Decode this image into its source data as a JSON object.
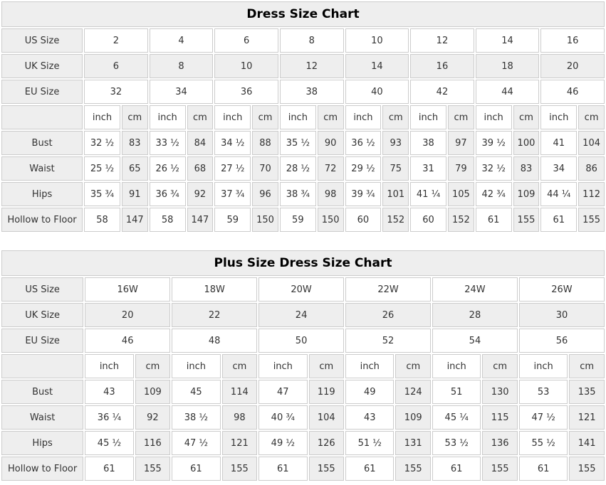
{
  "colors": {
    "shaded_cell": "#eeeeee",
    "plain_cell": "#ffffff",
    "border": "#cccccc",
    "cell_text": "#333333",
    "title_text": "#000000"
  },
  "chart_data": [
    {
      "type": "table",
      "title": "Dress Size Chart",
      "unit_labels": [
        "inch",
        "cm"
      ],
      "size_rows": [
        {
          "label": "US Size",
          "shaded": false,
          "values": [
            "2",
            "4",
            "6",
            "8",
            "10",
            "12",
            "14",
            "16"
          ]
        },
        {
          "label": "UK Size",
          "shaded": true,
          "values": [
            "6",
            "8",
            "10",
            "12",
            "14",
            "16",
            "18",
            "20"
          ]
        },
        {
          "label": "EU Size",
          "shaded": false,
          "values": [
            "32",
            "34",
            "36",
            "38",
            "40",
            "42",
            "44",
            "46"
          ]
        }
      ],
      "measure_rows": [
        {
          "label": "Bust",
          "values": [
            [
              "32 ½",
              "83"
            ],
            [
              "33 ½",
              "84"
            ],
            [
              "34 ½",
              "88"
            ],
            [
              "35 ½",
              "90"
            ],
            [
              "36 ½",
              "93"
            ],
            [
              "38",
              "97"
            ],
            [
              "39 ½",
              "100"
            ],
            [
              "41",
              "104"
            ]
          ]
        },
        {
          "label": "Waist",
          "values": [
            [
              "25 ½",
              "65"
            ],
            [
              "26 ½",
              "68"
            ],
            [
              "27 ½",
              "70"
            ],
            [
              "28 ½",
              "72"
            ],
            [
              "29 ½",
              "75"
            ],
            [
              "31",
              "79"
            ],
            [
              "32 ½",
              "83"
            ],
            [
              "34",
              "86"
            ]
          ]
        },
        {
          "label": "Hips",
          "values": [
            [
              "35 ¾",
              "91"
            ],
            [
              "36 ¾",
              "92"
            ],
            [
              "37 ¾",
              "96"
            ],
            [
              "38 ¾",
              "98"
            ],
            [
              "39 ¾",
              "101"
            ],
            [
              "41 ¼",
              "105"
            ],
            [
              "42 ¾",
              "109"
            ],
            [
              "44 ¼",
              "112"
            ]
          ]
        },
        {
          "label": "Hollow to Floor",
          "values": [
            [
              "58",
              "147"
            ],
            [
              "58",
              "147"
            ],
            [
              "59",
              "150"
            ],
            [
              "59",
              "150"
            ],
            [
              "60",
              "152"
            ],
            [
              "60",
              "152"
            ],
            [
              "61",
              "155"
            ],
            [
              "61",
              "155"
            ]
          ]
        }
      ]
    },
    {
      "type": "table",
      "title": "Plus Size Dress Size Chart",
      "unit_labels": [
        "inch",
        "cm"
      ],
      "size_rows": [
        {
          "label": "US Size",
          "shaded": false,
          "values": [
            "16W",
            "18W",
            "20W",
            "22W",
            "24W",
            "26W"
          ]
        },
        {
          "label": "UK Size",
          "shaded": true,
          "values": [
            "20",
            "22",
            "24",
            "26",
            "28",
            "30"
          ]
        },
        {
          "label": "EU Size",
          "shaded": false,
          "values": [
            "46",
            "48",
            "50",
            "52",
            "54",
            "56"
          ]
        }
      ],
      "measure_rows": [
        {
          "label": "Bust",
          "values": [
            [
              "43",
              "109"
            ],
            [
              "45",
              "114"
            ],
            [
              "47",
              "119"
            ],
            [
              "49",
              "124"
            ],
            [
              "51",
              "130"
            ],
            [
              "53",
              "135"
            ]
          ]
        },
        {
          "label": "Waist",
          "values": [
            [
              "36 ¼",
              "92"
            ],
            [
              "38 ½",
              "98"
            ],
            [
              "40 ¾",
              "104"
            ],
            [
              "43",
              "109"
            ],
            [
              "45 ¼",
              "115"
            ],
            [
              "47 ½",
              "121"
            ]
          ]
        },
        {
          "label": "Hips",
          "values": [
            [
              "45 ½",
              "116"
            ],
            [
              "47 ½",
              "121"
            ],
            [
              "49 ½",
              "126"
            ],
            [
              "51 ½",
              "131"
            ],
            [
              "53 ½",
              "136"
            ],
            [
              "55 ½",
              "141"
            ]
          ]
        },
        {
          "label": "Hollow to Floor",
          "values": [
            [
              "61",
              "155"
            ],
            [
              "61",
              "155"
            ],
            [
              "61",
              "155"
            ],
            [
              "61",
              "155"
            ],
            [
              "61",
              "155"
            ],
            [
              "61",
              "155"
            ]
          ]
        }
      ]
    }
  ]
}
